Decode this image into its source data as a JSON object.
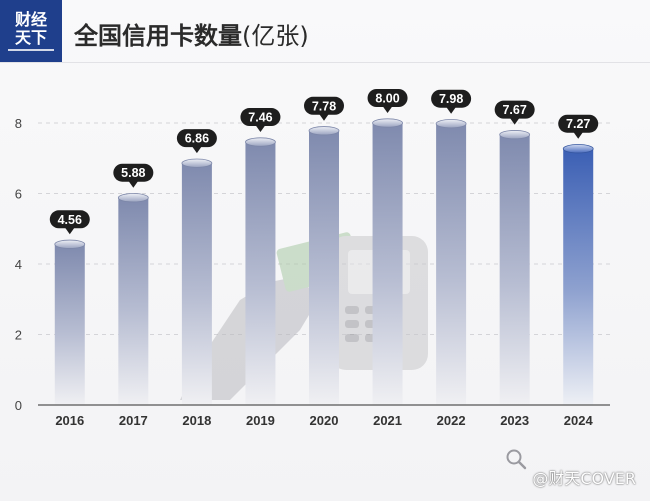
{
  "brand": {
    "line1": "财经",
    "line2": "天下"
  },
  "header": {
    "title": "全国信用卡数量",
    "unit": "(亿张)"
  },
  "watermark": "@财天COVER",
  "colors": {
    "brand": "#1f3f8c",
    "bar_top": "#8d97b8",
    "bar_bottom": "#f1f1f4",
    "last_bar_top": "#3f63b8",
    "label_bg": "#1e1e1e"
  },
  "chart_data": {
    "type": "bar",
    "title": "全国信用卡数量(亿张)",
    "categories": [
      "2016",
      "2017",
      "2018",
      "2019",
      "2020",
      "2021",
      "2022",
      "2023",
      "2024"
    ],
    "values": [
      4.56,
      5.88,
      6.86,
      7.46,
      7.78,
      8.0,
      7.98,
      7.67,
      7.27
    ],
    "value_labels": [
      "4.56",
      "5.88",
      "6.86",
      "7.46",
      "7.78",
      "8.00",
      "7.98",
      "7.67",
      "7.27"
    ],
    "yticks": [
      "0",
      "2",
      "4",
      "6",
      "8"
    ],
    "ylim": [
      0,
      8
    ],
    "grid": true,
    "highlight_last": true
  }
}
